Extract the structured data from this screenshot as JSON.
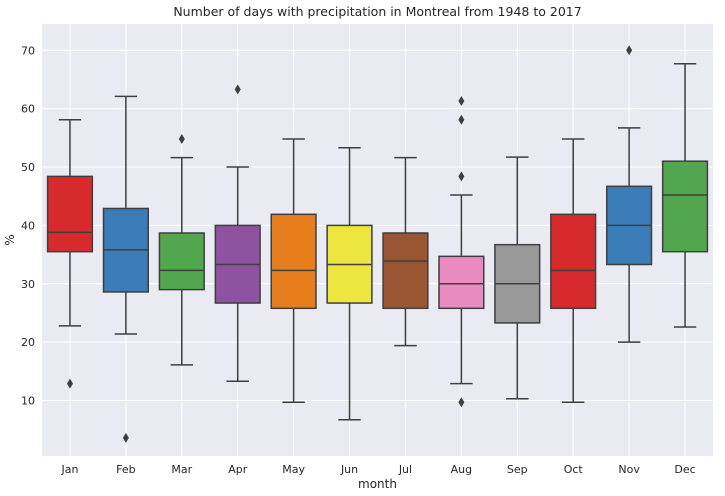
{
  "chart_data": {
    "type": "box",
    "title": "Number of days with precipitation in Montreal from 1948 to 2017",
    "xlabel": "month",
    "ylabel": "%",
    "ylim": [
      0.5,
      74.5
    ],
    "yticks": [
      10,
      20,
      30,
      40,
      50,
      60,
      70
    ],
    "grid": true,
    "legend": "none",
    "background_color": "#eaeaf2",
    "categories": [
      "Jan",
      "Feb",
      "Mar",
      "Apr",
      "May",
      "Jun",
      "Jul",
      "Aug",
      "Sep",
      "Oct",
      "Nov",
      "Dec"
    ],
    "boxes": [
      {
        "month": "Jan",
        "whisker_low": 22.8,
        "q1": 35.5,
        "median": 38.8,
        "q3": 48.4,
        "whisker_high": 58.1,
        "outliers": [
          12.9
        ],
        "color": "#d62a2c"
      },
      {
        "month": "Feb",
        "whisker_low": 21.4,
        "q1": 28.6,
        "median": 35.8,
        "q3": 42.9,
        "whisker_high": 62.1,
        "outliers": [
          3.6
        ],
        "color": "#3a7cb8"
      },
      {
        "month": "Mar",
        "whisker_low": 16.1,
        "q1": 29.0,
        "median": 32.3,
        "q3": 38.7,
        "whisker_high": 51.6,
        "outliers": [
          54.8
        ],
        "color": "#52a74e"
      },
      {
        "month": "Apr",
        "whisker_low": 13.3,
        "q1": 26.7,
        "median": 33.3,
        "q3": 40.0,
        "whisker_high": 50.0,
        "outliers": [
          63.3
        ],
        "color": "#8f52a0"
      },
      {
        "month": "May",
        "whisker_low": 9.7,
        "q1": 25.8,
        "median": 32.3,
        "q3": 41.9,
        "whisker_high": 54.8,
        "outliers": [],
        "color": "#e67d1d"
      },
      {
        "month": "Jun",
        "whisker_low": 6.7,
        "q1": 26.7,
        "median": 33.3,
        "q3": 40.0,
        "whisker_high": 53.3,
        "outliers": [],
        "color": "#ede63e"
      },
      {
        "month": "Jul",
        "whisker_low": 19.4,
        "q1": 25.8,
        "median": 33.9,
        "q3": 38.7,
        "whisker_high": 51.6,
        "outliers": [],
        "color": "#9a5532"
      },
      {
        "month": "Aug",
        "whisker_low": 12.9,
        "q1": 25.8,
        "median": 30.0,
        "q3": 34.7,
        "whisker_high": 45.2,
        "outliers": [
          9.7,
          48.4,
          58.1,
          61.3
        ],
        "color": "#e98ac0"
      },
      {
        "month": "Sep",
        "whisker_low": 10.3,
        "q1": 23.3,
        "median": 30.0,
        "q3": 36.7,
        "whisker_high": 51.7,
        "outliers": [],
        "color": "#999999"
      },
      {
        "month": "Oct",
        "whisker_low": 9.7,
        "q1": 25.8,
        "median": 32.3,
        "q3": 41.9,
        "whisker_high": 54.8,
        "outliers": [],
        "color": "#d62a2c"
      },
      {
        "month": "Nov",
        "whisker_low": 20.0,
        "q1": 33.3,
        "median": 40.0,
        "q3": 46.7,
        "whisker_high": 56.7,
        "outliers": [
          70.0
        ],
        "color": "#3a7cb8"
      },
      {
        "month": "Dec",
        "whisker_low": 22.6,
        "q1": 35.5,
        "median": 45.2,
        "q3": 51.0,
        "whisker_high": 67.7,
        "outliers": [],
        "color": "#52a74e"
      }
    ]
  }
}
